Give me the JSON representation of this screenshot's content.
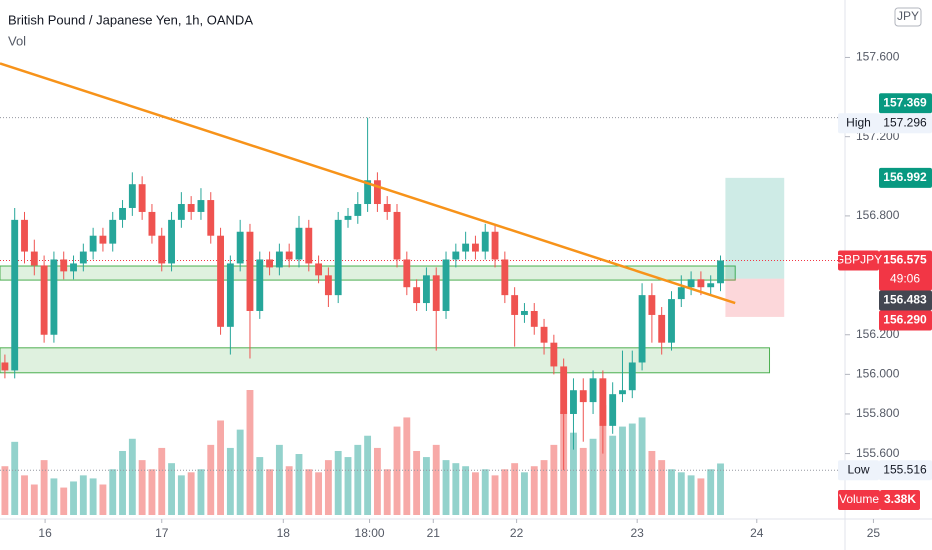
{
  "chart_data": {
    "type": "candlestick",
    "title": "British Pound / Japanese Yen, 1h, OANDA",
    "volume_title": "Vol",
    "currency": "JPY",
    "up_color": "#26a69a",
    "down_color": "#ef5350",
    "candles": [
      [
        156.06,
        156.1,
        155.98,
        156.02
      ],
      [
        156.02,
        156.84,
        155.98,
        156.78
      ],
      [
        156.78,
        156.82,
        156.56,
        156.62
      ],
      [
        156.62,
        156.68,
        156.5,
        156.55
      ],
      [
        156.55,
        156.6,
        156.16,
        156.2
      ],
      [
        156.2,
        156.62,
        156.16,
        156.58
      ],
      [
        156.58,
        156.62,
        156.48,
        156.52
      ],
      [
        156.52,
        156.6,
        156.48,
        156.56
      ],
      [
        156.56,
        156.66,
        156.52,
        156.62
      ],
      [
        156.62,
        156.74,
        156.58,
        156.7
      ],
      [
        156.7,
        156.74,
        156.62,
        156.66
      ],
      [
        156.66,
        156.82,
        156.62,
        156.78
      ],
      [
        156.78,
        156.88,
        156.74,
        156.84
      ],
      [
        156.84,
        157.02,
        156.8,
        156.96
      ],
      [
        156.96,
        157.0,
        156.78,
        156.82
      ],
      [
        156.82,
        156.86,
        156.66,
        156.7
      ],
      [
        156.7,
        156.74,
        156.52,
        156.56
      ],
      [
        156.56,
        156.82,
        156.52,
        156.78
      ],
      [
        156.78,
        156.92,
        156.74,
        156.86
      ],
      [
        156.86,
        156.9,
        156.78,
        156.82
      ],
      [
        156.82,
        156.94,
        156.78,
        156.88
      ],
      [
        156.88,
        156.92,
        156.66,
        156.7
      ],
      [
        156.7,
        156.74,
        156.2,
        156.24
      ],
      [
        156.24,
        156.6,
        156.1,
        156.56
      ],
      [
        156.56,
        156.78,
        156.52,
        156.72
      ],
      [
        156.72,
        156.76,
        156.08,
        156.32
      ],
      [
        156.32,
        156.62,
        156.28,
        156.58
      ],
      [
        156.58,
        156.62,
        156.5,
        156.54
      ],
      [
        156.54,
        156.66,
        156.5,
        156.62
      ],
      [
        156.62,
        156.66,
        156.54,
        156.58
      ],
      [
        156.58,
        156.8,
        156.54,
        156.74
      ],
      [
        156.74,
        156.78,
        156.52,
        156.56
      ],
      [
        156.56,
        156.6,
        156.46,
        156.5
      ],
      [
        156.5,
        156.54,
        156.34,
        156.4
      ],
      [
        156.4,
        156.82,
        156.36,
        156.78
      ],
      [
        156.78,
        156.84,
        156.74,
        156.8
      ],
      [
        156.8,
        156.92,
        156.76,
        156.86
      ],
      [
        156.86,
        157.296,
        156.82,
        156.98
      ],
      [
        156.98,
        157.02,
        156.82,
        156.86
      ],
      [
        156.86,
        156.9,
        156.78,
        156.82
      ],
      [
        156.82,
        156.86,
        156.54,
        156.58
      ],
      [
        156.58,
        156.62,
        156.4,
        156.44
      ],
      [
        156.44,
        156.48,
        156.32,
        156.36
      ],
      [
        156.36,
        156.54,
        156.32,
        156.5
      ],
      [
        156.5,
        156.54,
        156.12,
        156.32
      ],
      [
        156.32,
        156.62,
        156.28,
        156.58
      ],
      [
        156.58,
        156.66,
        156.54,
        156.62
      ],
      [
        156.62,
        156.72,
        156.58,
        156.66
      ],
      [
        156.66,
        156.7,
        156.58,
        156.62
      ],
      [
        156.62,
        156.76,
        156.58,
        156.72
      ],
      [
        156.72,
        156.76,
        156.54,
        156.58
      ],
      [
        156.58,
        156.62,
        156.36,
        156.4
      ],
      [
        156.4,
        156.44,
        156.14,
        156.3
      ],
      [
        156.3,
        156.36,
        156.26,
        156.32
      ],
      [
        156.32,
        156.36,
        156.2,
        156.24
      ],
      [
        156.24,
        156.28,
        156.1,
        156.16
      ],
      [
        156.16,
        156.2,
        156.0,
        156.04
      ],
      [
        156.04,
        156.08,
        155.516,
        155.8
      ],
      [
        155.8,
        155.98,
        155.62,
        155.92
      ],
      [
        155.92,
        155.98,
        155.66,
        155.86
      ],
      [
        155.86,
        156.02,
        155.8,
        155.98
      ],
      [
        155.98,
        156.02,
        155.6,
        155.74
      ],
      [
        155.74,
        155.96,
        155.7,
        155.9
      ],
      [
        155.9,
        156.12,
        155.86,
        155.92
      ],
      [
        155.92,
        156.12,
        155.88,
        156.06
      ],
      [
        156.06,
        156.46,
        156.02,
        156.4
      ],
      [
        156.4,
        156.46,
        156.16,
        156.3
      ],
      [
        156.3,
        156.34,
        156.1,
        156.16
      ],
      [
        156.16,
        156.42,
        156.12,
        156.38
      ],
      [
        156.38,
        156.5,
        156.34,
        156.44
      ],
      [
        156.44,
        156.52,
        156.4,
        156.48
      ],
      [
        156.48,
        156.52,
        156.4,
        156.44
      ],
      [
        156.44,
        156.5,
        156.4,
        156.46
      ],
      [
        156.46,
        156.6,
        156.42,
        156.575
      ]
    ],
    "volume": {
      "name": "Volume",
      "up_color": "#93d2cc",
      "down_color": "#f7a9a7",
      "values": [
        3200,
        4800,
        2600,
        2000,
        3600,
        2400,
        1800,
        2200,
        2600,
        2400,
        2000,
        3000,
        4200,
        5000,
        3600,
        3000,
        4400,
        3400,
        2600,
        2800,
        3000,
        4600,
        6200,
        4400,
        5600,
        8200,
        3800,
        3000,
        4600,
        3200,
        4000,
        3000,
        2800,
        3600,
        4200,
        3800,
        4600,
        5200,
        4400,
        3000,
        5800,
        6400,
        4200,
        3800,
        4600,
        3600,
        3400,
        3200,
        2800,
        3000,
        2600,
        3000,
        3400,
        2800,
        3200,
        3600,
        4600,
        6800,
        5400,
        4400,
        5000,
        7200,
        5200,
        5800,
        6000,
        6400,
        4200,
        3600,
        3000,
        2800,
        2600,
        2400,
        3000,
        3380
      ],
      "last_label": "3.38K"
    },
    "xlim": [
      -0.5,
      85.7
    ],
    "xticks": [
      {
        "value": 4.1,
        "label": "16"
      },
      {
        "value": 16.0,
        "label": "17"
      },
      {
        "value": 28.4,
        "label": "18"
      },
      {
        "value": 37.2,
        "label": "18:00"
      },
      {
        "value": 43.7,
        "label": "21"
      },
      {
        "value": 52.2,
        "label": "22"
      },
      {
        "value": 64.5,
        "label": "23"
      },
      {
        "value": 76.7,
        "label": "24"
      },
      {
        "value": 88.6,
        "label": "25"
      }
    ],
    "ylim": [
      155.29,
      157.89
    ],
    "yticks": [
      {
        "value": 157.6,
        "label": "157.600"
      },
      {
        "value": 157.2,
        "label": "157.200"
      },
      {
        "value": 156.8,
        "label": "156.800"
      },
      {
        "value": 156.2,
        "label": "156.200"
      },
      {
        "value": 156.0,
        "label": "156.000"
      },
      {
        "value": 155.8,
        "label": "155.800"
      },
      {
        "value": 155.6,
        "label": "155.600"
      }
    ],
    "price_labels": [
      {
        "value": 157.369,
        "label": "157.369",
        "color": "#089981"
      },
      {
        "name": "High",
        "value": 157.296,
        "label": "157.296",
        "color": "#eef3fb",
        "dotted": true
      },
      {
        "value": 156.992,
        "label": "156.992",
        "color": "#089981"
      },
      {
        "name": "GBPJPY",
        "value": 156.575,
        "label": "156.575",
        "countdown": "49:06",
        "color": "#f23645",
        "dotted": true
      },
      {
        "value": 156.483,
        "label": "156.483",
        "color": "#434651"
      },
      {
        "value": 156.29,
        "label": "156.290",
        "color": "#f23645"
      },
      {
        "name": "Low",
        "value": 155.516,
        "label": "155.516",
        "color": "#eef3fb",
        "dotted": true
      }
    ],
    "drawings": {
      "zones": [
        {
          "x": [
            -0.5,
            74.5
          ],
          "y": [
            156.476,
            156.547
          ]
        },
        {
          "x": [
            -0.5,
            78.0
          ],
          "y": [
            156.008,
            156.134
          ]
        }
      ],
      "trendline": {
        "x": [
          -0.5,
          74.5
        ],
        "y": [
          157.57,
          156.36
        ],
        "color": "#f7931a"
      },
      "position": {
        "x": [
          73.5,
          79.5
        ],
        "target": 156.992,
        "entry": 156.483,
        "stop": 156.29
      }
    }
  }
}
